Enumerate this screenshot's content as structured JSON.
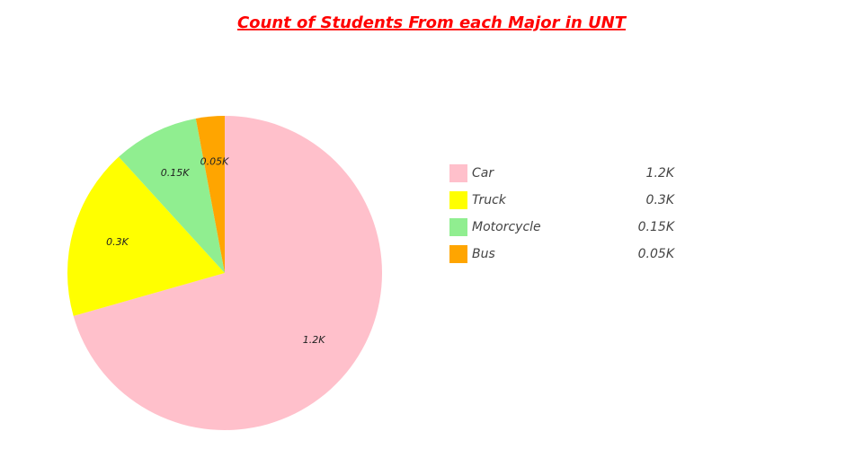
{
  "chart_data": {
    "type": "pie",
    "title": "Count of Students From each Major in UNT",
    "categories": [
      "Car",
      "Truck",
      "Motorcycle",
      "Bus"
    ],
    "values": [
      1200,
      300,
      150,
      50
    ],
    "value_labels": [
      "1.2K",
      "0.3K",
      "0.15K",
      "0.05K"
    ],
    "colors": [
      "#ffc0cb",
      "#ffff00",
      "#90ee90",
      "#ffa500"
    ],
    "legend": "right"
  }
}
